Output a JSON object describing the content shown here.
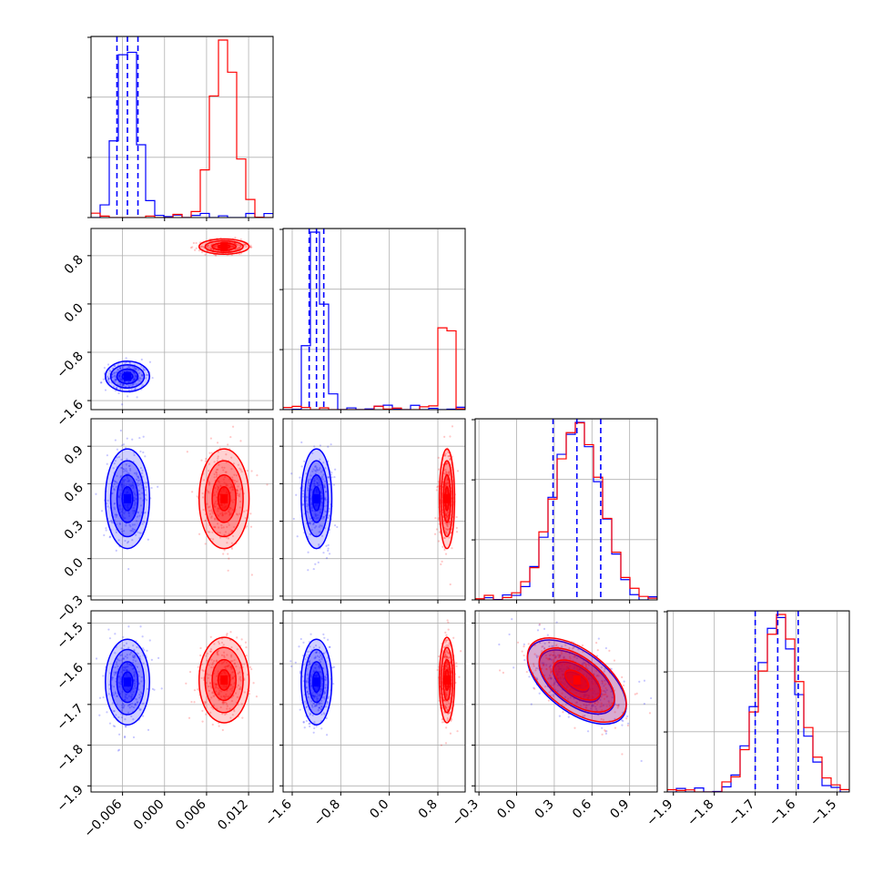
{
  "chart_data": {
    "type": "corner",
    "grid": true,
    "series": [
      {
        "color": "#0000ff",
        "means": [
          -0.0053,
          -1.2,
          0.48,
          -1.645
        ],
        "sds": [
          0.0015,
          0.12,
          0.19,
          0.05
        ],
        "corr_2_3": -0.55
      },
      {
        "color": "#ff0000",
        "means": [
          0.0085,
          0.95,
          0.48,
          -1.64
        ],
        "sds": [
          0.0017,
          0.06,
          0.19,
          0.05
        ],
        "corr_2_3": -0.55
      }
    ],
    "quantile_lines": [
      [
        -0.0068,
        -0.0053,
        -0.0038
      ],
      [
        -1.32,
        -1.2,
        -1.08
      ],
      [
        0.29,
        0.48,
        0.67
      ],
      [
        -1.7,
        -1.645,
        -1.595
      ]
    ],
    "quantile_line_color": "#0000ff",
    "axes": [
      {
        "range": [
          -0.0105,
          0.0155
        ],
        "ticks": [
          -0.006,
          0.0,
          0.006,
          0.012
        ],
        "tick_labels": [
          "−0.006",
          "0.000",
          "0.006",
          "0.012"
        ]
      },
      {
        "range": [
          -1.75,
          1.25
        ],
        "ticks": [
          -1.6,
          -0.8,
          0.0,
          0.8
        ],
        "tick_labels": [
          "−1.6",
          "−0.8",
          "0.0",
          "0.8"
        ]
      },
      {
        "range": [
          -0.33,
          1.12
        ],
        "ticks": [
          -0.3,
          0.0,
          0.3,
          0.6,
          0.9
        ],
        "tick_labels": [
          "−0.3",
          "0.0",
          "0.3",
          "0.6",
          "0.9"
        ]
      },
      {
        "range": [
          -1.915,
          -1.47
        ],
        "ticks": [
          -1.9,
          -1.8,
          -1.7,
          -1.6,
          -1.5
        ],
        "tick_labels": [
          "−1.9",
          "−1.8",
          "−1.7",
          "−1.6",
          "−1.5"
        ]
      }
    ],
    "hist_bins": 20,
    "scatter_points_per_series": 320
  }
}
